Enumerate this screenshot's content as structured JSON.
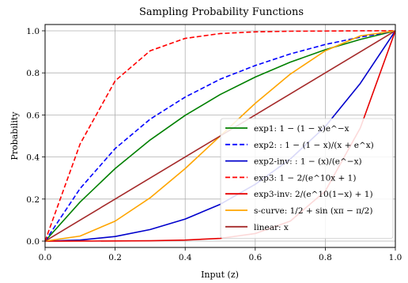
{
  "chart_data": {
    "type": "line",
    "title": "Sampling Probability Functions",
    "xlabel": "Input (z)",
    "ylabel": "Probability",
    "xlim": [
      0.0,
      1.0
    ],
    "ylim": [
      -0.03,
      1.03
    ],
    "xticks": [
      0.0,
      0.2,
      0.4,
      0.6,
      0.8,
      1.0
    ],
    "yticks": [
      0.0,
      0.2,
      0.4,
      0.6,
      0.8,
      1.0
    ],
    "xtick_labels": [
      "0.0",
      "0.2",
      "0.4",
      "0.6",
      "0.8",
      "1.0"
    ],
    "ytick_labels": [
      "0.0",
      "0.2",
      "0.4",
      "0.6",
      "0.8",
      "1.0"
    ],
    "grid": true,
    "legend_position": "lower-right",
    "x": [
      0.0,
      0.1,
      0.2,
      0.3,
      0.4,
      0.5,
      0.6,
      0.7,
      0.8,
      0.9,
      1.0
    ],
    "series": [
      {
        "name": "exp1: 1 − (1 − x)e^−x",
        "color": "#008000",
        "dash": "solid",
        "values": [
          0.0,
          0.186,
          0.345,
          0.481,
          0.598,
          0.697,
          0.78,
          0.851,
          0.91,
          0.959,
          1.0
        ]
      },
      {
        "name": "exp2: : 1 − (1 − x)/(x + e^x)",
        "color": "#0000ff",
        "dash": "dashed",
        "values": [
          0.0,
          0.25,
          0.44,
          0.58,
          0.685,
          0.77,
          0.835,
          0.89,
          0.935,
          0.97,
          1.0
        ]
      },
      {
        "name": "exp2-inv: : 1 − (x)/(e^−x)",
        "color": "#0000cc",
        "dash": "solid",
        "values": [
          0.0,
          0.005,
          0.022,
          0.055,
          0.105,
          0.175,
          0.27,
          0.39,
          0.545,
          0.75,
          1.0
        ]
      },
      {
        "name": "exp3: 1 − 2/(e^10x + 1)",
        "color": "#ff0000",
        "dash": "dashed",
        "values": [
          0.0,
          0.462,
          0.762,
          0.905,
          0.964,
          0.987,
          0.995,
          0.998,
          0.999,
          1.0,
          1.0
        ]
      },
      {
        "name": "exp3-inv: 2/(e^10(1−x) + 1)",
        "color": "#e60000",
        "dash": "solid",
        "values": [
          0.0,
          0.0002,
          0.0007,
          0.0018,
          0.005,
          0.013,
          0.036,
          0.095,
          0.238,
          0.538,
          1.0
        ]
      },
      {
        "name": "s-curve: 1/2 + sin (xπ − π/2)",
        "color": "#ffa500",
        "dash": "solid",
        "values": [
          0.0,
          0.024,
          0.095,
          0.206,
          0.345,
          0.5,
          0.655,
          0.794,
          0.905,
          0.976,
          1.0
        ]
      },
      {
        "name": "linear: x",
        "color": "#a52a2a",
        "dash": "solid",
        "values": [
          0.0,
          0.1,
          0.2,
          0.3,
          0.4,
          0.5,
          0.6,
          0.7,
          0.8,
          0.9,
          1.0
        ]
      }
    ]
  }
}
